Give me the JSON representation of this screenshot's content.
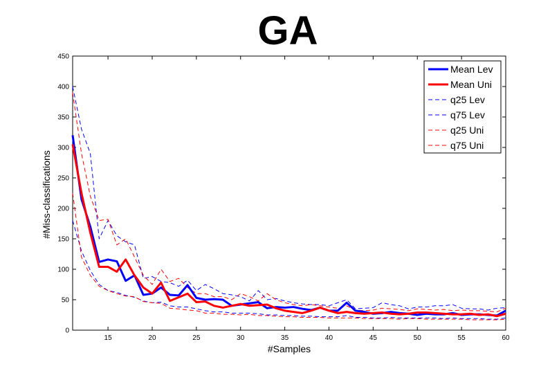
{
  "chart_data": {
    "type": "line",
    "title": "GA",
    "xlabel": "#Samples",
    "ylabel": "#Miss-classifications",
    "xlim": [
      11,
      60
    ],
    "ylim": [
      0,
      450
    ],
    "xticks": [
      15,
      20,
      25,
      30,
      35,
      40,
      45,
      50,
      55,
      60
    ],
    "yticks": [
      0,
      50,
      100,
      150,
      200,
      250,
      300,
      350,
      400,
      450
    ],
    "grid": false,
    "legend_position": "top-right",
    "x": [
      11,
      12,
      13,
      14,
      15,
      16,
      17,
      18,
      19,
      20,
      21,
      22,
      23,
      24,
      25,
      26,
      27,
      28,
      29,
      30,
      31,
      32,
      33,
      34,
      35,
      36,
      37,
      38,
      39,
      40,
      41,
      42,
      43,
      44,
      45,
      46,
      47,
      48,
      49,
      50,
      51,
      52,
      53,
      54,
      55,
      56,
      57,
      58,
      59,
      60
    ],
    "series": [
      {
        "name": "Mean Lev",
        "color": "#0000ff",
        "style": "solid",
        "width": 3,
        "values": [
          320,
          215,
          170,
          112,
          116,
          113,
          81,
          90,
          58,
          60,
          70,
          58,
          57,
          74,
          53,
          50,
          51,
          50,
          40,
          42,
          44,
          46,
          36,
          38,
          37,
          38,
          35,
          33,
          37,
          32,
          32,
          45,
          32,
          30,
          27,
          28,
          30,
          28,
          27,
          25,
          27,
          26,
          26,
          28,
          25,
          26,
          26,
          25,
          24,
          32
        ]
      },
      {
        "name": "Mean Uni",
        "color": "#ff0000",
        "style": "solid",
        "width": 3,
        "values": [
          305,
          225,
          160,
          104,
          104,
          96,
          116,
          90,
          70,
          60,
          78,
          48,
          54,
          60,
          46,
          47,
          40,
          37,
          40,
          43,
          40,
          41,
          42,
          36,
          32,
          30,
          28,
          32,
          37,
          32,
          28,
          30,
          28,
          27,
          28,
          29,
          27,
          26,
          27,
          29,
          29,
          28,
          27,
          26,
          26,
          27,
          25,
          26,
          23,
          27
        ]
      },
      {
        "name": "q25 Lev",
        "color": "#0000ff",
        "style": "dashed",
        "width": 1,
        "values": [
          180,
          130,
          98,
          75,
          65,
          62,
          57,
          54,
          48,
          45,
          46,
          40,
          38,
          38,
          35,
          32,
          30,
          30,
          28,
          28,
          28,
          27,
          25,
          25,
          24,
          24,
          23,
          23,
          22,
          22,
          22,
          24,
          21,
          21,
          20,
          20,
          21,
          20,
          20,
          20,
          20,
          20,
          19,
          20,
          19,
          19,
          19,
          18,
          18,
          20
        ]
      },
      {
        "name": "q75 Lev",
        "color": "#0000ff",
        "style": "dashed",
        "width": 1,
        "values": [
          400,
          330,
          290,
          150,
          180,
          155,
          145,
          140,
          85,
          88,
          80,
          78,
          72,
          82,
          65,
          75,
          68,
          60,
          58,
          55,
          48,
          65,
          50,
          52,
          48,
          45,
          43,
          42,
          42,
          40,
          45,
          50,
          35,
          36,
          37,
          45,
          42,
          40,
          35,
          38,
          38,
          40,
          40,
          42,
          36,
          35,
          35,
          33,
          36,
          37
        ]
      },
      {
        "name": "q25 Uni",
        "color": "#ff0000",
        "style": "dashed",
        "width": 1,
        "values": [
          225,
          120,
          90,
          72,
          65,
          60,
          56,
          55,
          47,
          45,
          44,
          36,
          35,
          33,
          32,
          28,
          28,
          26,
          26,
          25,
          26,
          24,
          24,
          23,
          22,
          22,
          21,
          21,
          21,
          20,
          20,
          20,
          20,
          19,
          19,
          19,
          19,
          18,
          19,
          19,
          18,
          18,
          18,
          18,
          18,
          17,
          17,
          17,
          17,
          18
        ]
      },
      {
        "name": "q75 Uni",
        "color": "#ff0000",
        "style": "dashed",
        "width": 1,
        "values": [
          390,
          290,
          220,
          180,
          182,
          140,
          150,
          120,
          90,
          75,
          100,
          80,
          85,
          70,
          60,
          60,
          55,
          55,
          50,
          60,
          55,
          48,
          60,
          50,
          45,
          42,
          40,
          42,
          40,
          38,
          36,
          40,
          33,
          32,
          33,
          36,
          35,
          34,
          32,
          35,
          34,
          33,
          34,
          32,
          33,
          32,
          32,
          31,
          30,
          36
        ]
      }
    ]
  }
}
